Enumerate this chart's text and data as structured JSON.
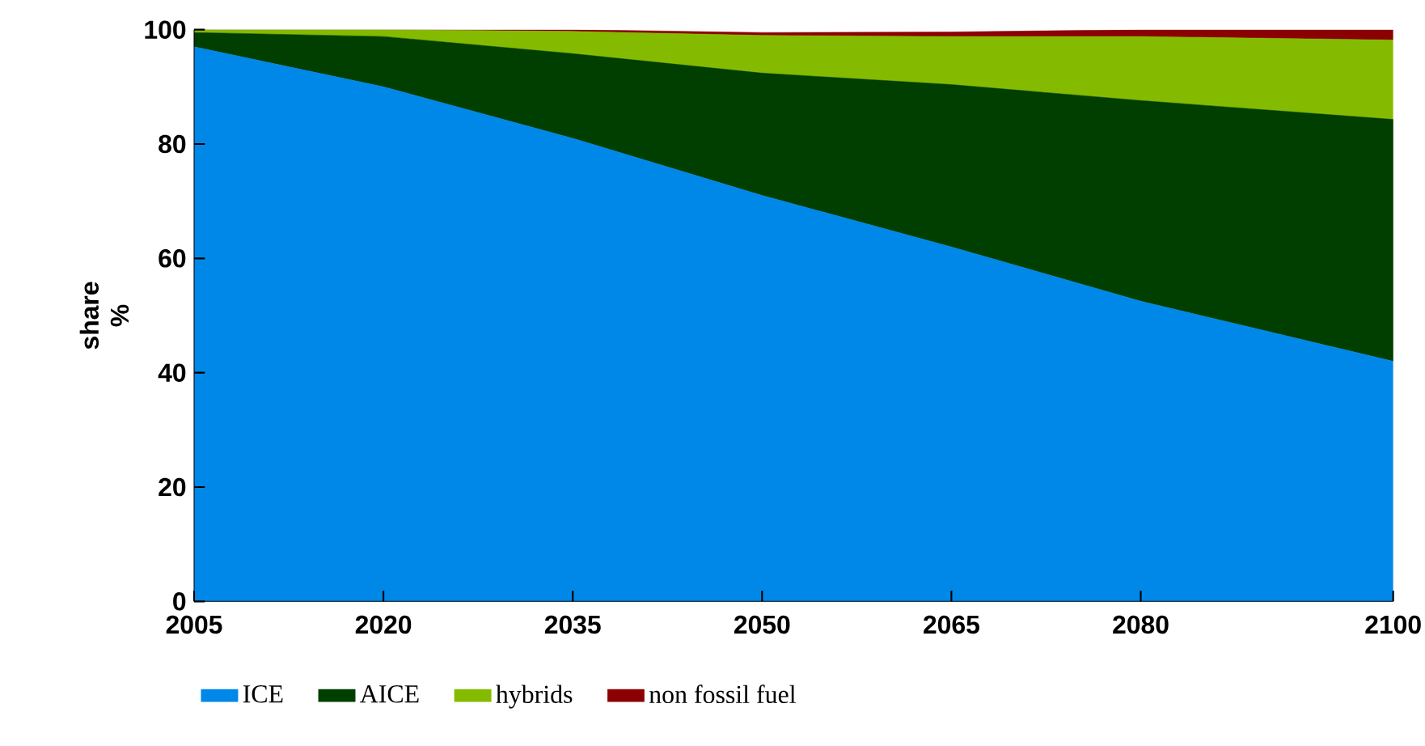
{
  "chart_data": {
    "type": "area",
    "stacked": true,
    "ylabel": "share %",
    "x": [
      2005,
      2020,
      2035,
      2050,
      2065,
      2080,
      2100
    ],
    "xlim": [
      2005,
      2100
    ],
    "xticks": [
      2005,
      2020,
      2035,
      2050,
      2065,
      2080,
      2100
    ],
    "ylim": [
      0,
      100
    ],
    "yticks": [
      0,
      20,
      40,
      60,
      80,
      100
    ],
    "legend": "bottom",
    "series": [
      {
        "name": "ICE",
        "color": "#0088e8",
        "values": [
          97,
          90,
          81,
          71,
          62,
          52.5,
          42
        ]
      },
      {
        "name": "AICE",
        "color": "#003f00",
        "values": [
          2.5,
          8.8,
          14.8,
          21.4,
          28.4,
          35.1,
          42.3
        ]
      },
      {
        "name": "hybrids",
        "color": "#84bb00",
        "values": [
          0.5,
          1.2,
          3.9,
          6.6,
          8.4,
          11.2,
          13.9
        ]
      },
      {
        "name": "non fossil fuel",
        "color": "#8b0000",
        "values": [
          0,
          0,
          0.3,
          0.5,
          0.8,
          1.2,
          1.8
        ]
      }
    ]
  }
}
